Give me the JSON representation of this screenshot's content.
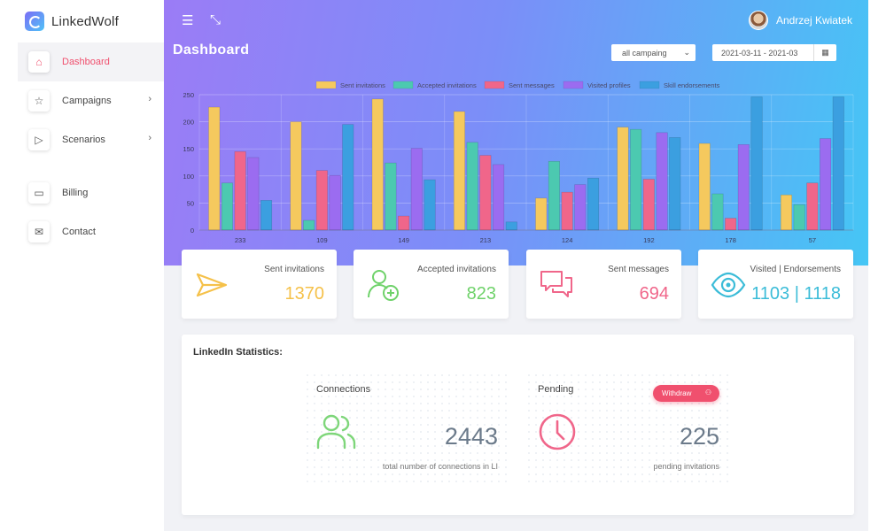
{
  "app": {
    "name": "LinkedWolf"
  },
  "sidebar": {
    "items": [
      {
        "label": "Dashboard",
        "icon": "home-icon",
        "glyph": "⌂",
        "active": true,
        "chevron": false
      },
      {
        "label": "Campaigns",
        "icon": "star-icon",
        "glyph": "☆",
        "active": false,
        "chevron": true
      },
      {
        "label": "Scenarios",
        "icon": "play-icon",
        "glyph": "▷",
        "active": false,
        "chevron": true
      },
      {
        "label": "Billing",
        "icon": "billing-icon",
        "glyph": "▭",
        "active": false,
        "chevron": false
      },
      {
        "label": "Contact",
        "icon": "envelope-icon",
        "glyph": "✉",
        "active": false,
        "chevron": false
      }
    ],
    "chevron_glyph": "›"
  },
  "topbar": {
    "menu_glyph": "☰",
    "collapse_glyph": "⤡",
    "user_name": "Andrzej Kwiatek"
  },
  "dashboard": {
    "title": "Dashboard",
    "campaign_select": {
      "value": "all campaing",
      "caret": "⌄"
    },
    "date_range": {
      "value": "2021-03-11 - 2021-03",
      "calendar_glyph": "▦"
    }
  },
  "chart_data": {
    "type": "bar",
    "categories": [
      "233",
      "109",
      "149",
      "213",
      "124",
      "192",
      "178",
      "57"
    ],
    "series": [
      {
        "name": "Sent invitations",
        "color": "#f5c95e",
        "values": [
          227,
          200,
          242,
          219,
          59,
          190,
          160,
          65
        ]
      },
      {
        "name": "Accepted invitations",
        "color": "#4cc9b0",
        "values": [
          87,
          18,
          124,
          162,
          127,
          186,
          67,
          47
        ]
      },
      {
        "name": "Sent messages",
        "color": "#f0668a",
        "values": [
          145,
          110,
          26,
          138,
          70,
          94,
          22,
          87
        ]
      },
      {
        "name": "Visited profiles",
        "color": "#9b6cf0",
        "values": [
          134,
          101,
          151,
          121,
          84,
          180,
          158,
          169
        ]
      },
      {
        "name": "Skill endorsements",
        "color": "#3b9fe0",
        "values": [
          55,
          195,
          93,
          15,
          96,
          171,
          246,
          246
        ]
      }
    ],
    "ylim": [
      0,
      250
    ],
    "yticks": [
      "0",
      "50",
      "100",
      "150",
      "200",
      "250"
    ],
    "grid": true,
    "legend": "top"
  },
  "cards": [
    {
      "label": "Sent invitations",
      "value": "1370",
      "color": "#f5c14a",
      "icon": "paper-plane-icon"
    },
    {
      "label": "Accepted invitations",
      "value": "823",
      "color": "#6fd26a",
      "icon": "add-user-icon"
    },
    {
      "label": "Sent messages",
      "value": "694",
      "color": "#f0668a",
      "icon": "chat-icon"
    },
    {
      "label": "Visited | Endorsements",
      "value": "1103 | 1118",
      "color": "#3bbcd8",
      "icon": "eye-icon"
    }
  ],
  "linkedin_stats": {
    "title": "LinkedIn Statistics:",
    "connections": {
      "title": "Connections",
      "value": "2443",
      "caption": "total number of connections in LI",
      "color": "#7ed67a",
      "icon": "users-icon"
    },
    "pending": {
      "title": "Pending",
      "value": "225",
      "caption": "pending invitations",
      "color": "#f0668a",
      "icon": "clock-icon",
      "withdraw_label": "Withdraw",
      "withdraw_icon": "remove-user-icon",
      "withdraw_glyph": "⚇"
    }
  }
}
